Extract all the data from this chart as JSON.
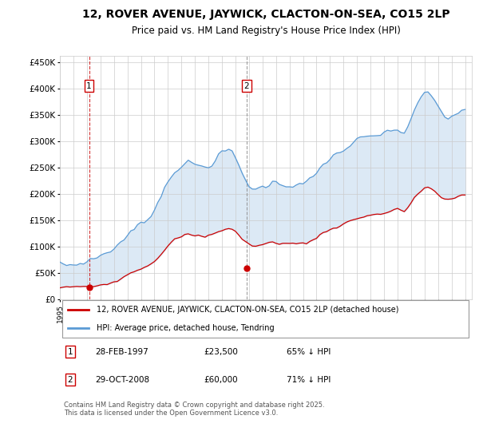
{
  "title": "12, ROVER AVENUE, JAYWICK, CLACTON-ON-SEA, CO15 2LP",
  "subtitle": "Price paid vs. HM Land Registry's House Price Index (HPI)",
  "title_fontsize": 10,
  "subtitle_fontsize": 8.5,
  "ylabel_ticks": [
    "£0",
    "£50K",
    "£100K",
    "£150K",
    "£200K",
    "£250K",
    "£300K",
    "£350K",
    "£400K",
    "£450K"
  ],
  "ytick_values": [
    0,
    50000,
    100000,
    150000,
    200000,
    250000,
    300000,
    350000,
    400000,
    450000
  ],
  "ylim": [
    0,
    462000
  ],
  "xlim_start": 1995.0,
  "xlim_end": 2025.5,
  "hpi_color": "#5b9bd5",
  "hpi_fill_color": "#dce9f5",
  "price_color": "#cc0000",
  "background_color": "#ffffff",
  "grid_color": "#cccccc",
  "sale1_x": 1997.16,
  "sale1_y": 23500,
  "sale2_x": 2008.83,
  "sale2_y": 60000,
  "legend_line1": "12, ROVER AVENUE, JAYWICK, CLACTON-ON-SEA, CO15 2LP (detached house)",
  "legend_line2": "HPI: Average price, detached house, Tendring",
  "footer": "Contains HM Land Registry data © Crown copyright and database right 2025.\nThis data is licensed under the Open Government Licence v3.0.",
  "hpi_base_y": [
    65000,
    65200,
    65100,
    65300,
    66000,
    66500,
    68200,
    70100,
    72500,
    74800,
    77200,
    80100,
    83000,
    86200,
    89500,
    93000,
    97000,
    102000,
    108500,
    115000,
    121000,
    127000,
    133000,
    139000,
    143000,
    148000,
    154500,
    162000,
    171500,
    183000,
    197000,
    212000,
    224000,
    234000,
    243000,
    249500,
    254000,
    257000,
    258500,
    257500,
    255500,
    253500,
    252500,
    251500,
    254000,
    259000,
    265000,
    271500,
    277500,
    282000,
    282500,
    278000,
    268000,
    254000,
    239000,
    227000,
    217000,
    211000,
    208500,
    210500,
    213500,
    216000,
    219000,
    221500,
    221500,
    220500,
    219500,
    217500,
    216000,
    215500,
    216500,
    218000,
    219500,
    221500,
    225500,
    231000,
    239000,
    247500,
    255500,
    262500,
    267500,
    271500,
    275500,
    279500,
    283500,
    288000,
    292500,
    296500,
    300500,
    304500,
    306500,
    307500,
    309000,
    310500,
    312000,
    312500,
    313500,
    315500,
    318500,
    322500,
    323500,
    317500,
    314000,
    329000,
    344500,
    359500,
    371500,
    381500,
    389500,
    391500,
    387500,
    377500,
    364500,
    353500,
    347000,
    344000,
    347000,
    351000,
    355000,
    357000,
    358000
  ],
  "prop_base_y": [
    23500,
    23500,
    23500,
    23500,
    23500,
    23500,
    23500,
    23500,
    23500,
    24500,
    25200,
    26500,
    27800,
    29200,
    30800,
    32500,
    34500,
    37000,
    40000,
    43500,
    47000,
    50500,
    54000,
    57500,
    59000,
    61500,
    64500,
    68500,
    73500,
    79500,
    87000,
    95000,
    101000,
    107000,
    112500,
    116500,
    119500,
    121500,
    122500,
    122000,
    121000,
    120000,
    119500,
    119000,
    120500,
    123000,
    126000,
    129000,
    132000,
    134500,
    135000,
    133000,
    128500,
    122000,
    115000,
    109000,
    104000,
    102000,
    101500,
    102500,
    104000,
    105500,
    107000,
    108000,
    108000,
    107500,
    107000,
    106000,
    105500,
    105500,
    106000,
    106500,
    107000,
    108000,
    110000,
    113000,
    117000,
    121500,
    126000,
    130000,
    133000,
    135500,
    138000,
    140500,
    143000,
    146000,
    148500,
    151000,
    153500,
    156000,
    157500,
    158500,
    159500,
    161000,
    162000,
    162500,
    163500,
    165000,
    167000,
    170000,
    171000,
    168000,
    167000,
    175000,
    184000,
    193000,
    200000,
    206000,
    211000,
    212500,
    210500,
    205000,
    198000,
    192500,
    189000,
    188000,
    190000,
    193000,
    196000,
    198000,
    200000
  ]
}
